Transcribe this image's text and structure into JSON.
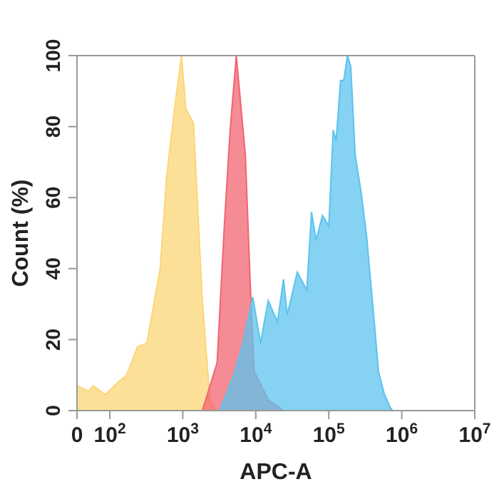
{
  "chart_data": {
    "type": "area",
    "xlabel": "APC-A",
    "ylabel": "Count (%)",
    "log": "x",
    "xlim": [
      0,
      10000000
    ],
    "xticks": [
      0,
      {
        "value": 100,
        "label": "10$^{2}$"
      },
      {
        "value": 1000,
        "label": "10$^{3}$"
      },
      {
        "value": 10000,
        "label": "10$^{4}$"
      },
      {
        "value": 100000,
        "label": "10$^{5}$"
      },
      {
        "value": 1000000,
        "label": "10$^{6}$"
      },
      {
        "value": 10000000,
        "label": "10$^{7}$"
      }
    ],
    "ylim": [
      0,
      100
    ],
    "yticks": [
      0,
      20,
      40,
      60,
      80,
      100
    ],
    "series": [
      {
        "color": "#fcd676",
        "x": [
          36,
          51,
          59,
          87,
          130,
          170,
          240,
          320,
          370,
          490,
          600,
          780,
          960,
          1100,
          1400,
          1850,
          2350,
          2800
        ],
        "values": [
          7,
          5.5,
          7,
          4.5,
          8,
          10,
          18,
          19,
          26,
          40,
          66,
          86,
          100,
          85,
          81,
          31,
          3,
          0
        ]
      },
      {
        "color": "#f26472",
        "x": [
          1850,
          2950,
          3700,
          4450,
          5400,
          7200,
          8300,
          9500,
          14800,
          24000
        ],
        "values": [
          0,
          13.5,
          52,
          79,
          100,
          72,
          38,
          11,
          3,
          0
        ]
      },
      {
        "color": "#5cc3ee",
        "x": [
          3200,
          5000,
          6500,
          9100,
          11600,
          14800,
          19800,
          24000,
          27000,
          37000,
          50000,
          58000,
          67000,
          82000,
          100000,
          115000,
          126000,
          145000,
          160000,
          180000,
          200000,
          230000,
          280000,
          330000,
          420000,
          480000,
          570000,
          690000,
          750000
        ],
        "values": [
          0,
          10,
          18,
          32,
          19,
          31,
          25,
          37,
          27,
          39,
          34,
          56,
          48,
          55,
          52,
          79,
          76,
          93,
          93,
          100,
          97,
          72,
          61,
          49,
          25,
          11,
          5,
          1,
          0
        ]
      }
    ]
  }
}
